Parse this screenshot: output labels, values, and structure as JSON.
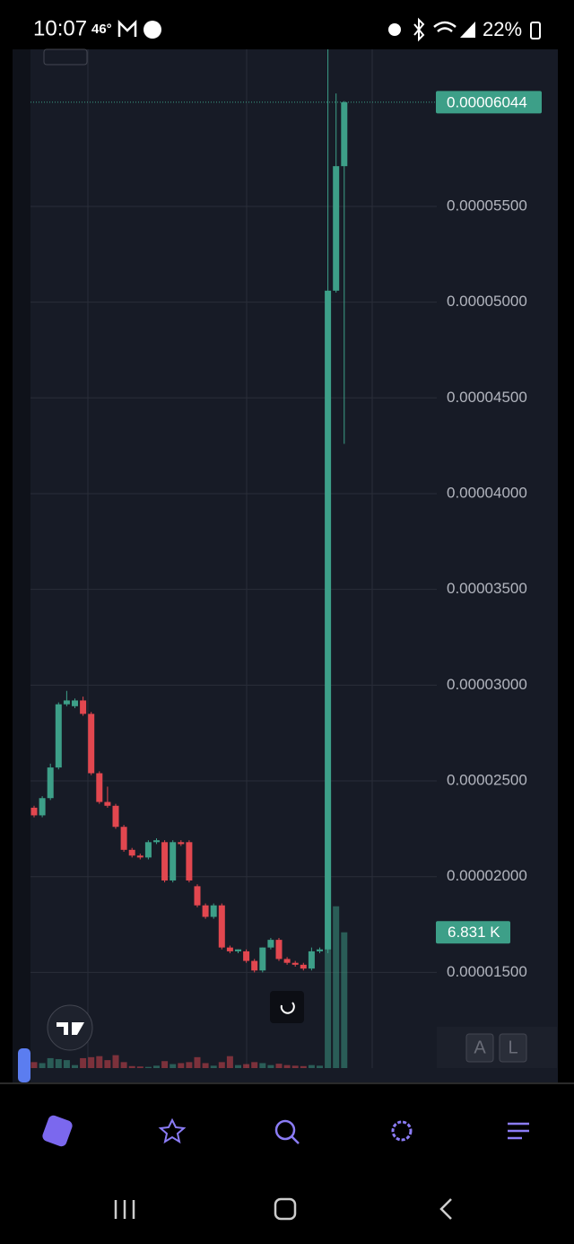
{
  "status_bar": {
    "time": "10:07",
    "temperature": "46°",
    "battery": "22%"
  },
  "chart_data": {
    "type": "candlestick",
    "ylim": [
      9.3e-06,
      6.32e-05
    ],
    "yticks": [
      {
        "value": 1.5e-05,
        "label": "0.00001500"
      },
      {
        "value": 2e-05,
        "label": "0.00002000"
      },
      {
        "value": 2.5e-05,
        "label": "0.00002500"
      },
      {
        "value": 3e-05,
        "label": "0.00003000"
      },
      {
        "value": 3.5e-05,
        "label": "0.00003500"
      },
      {
        "value": 4e-05,
        "label": "0.00004000"
      },
      {
        "value": 4.5e-05,
        "label": "0.00004500"
      },
      {
        "value": 5e-05,
        "label": "0.00005000"
      },
      {
        "value": 5.5e-05,
        "label": "0.00005500"
      }
    ],
    "grid": true,
    "up_color": "#3d9f88",
    "down_color": "#e2474f",
    "open": [
      2.36e-05,
      2.32e-05,
      2.41e-05,
      2.57e-05,
      2.9e-05,
      2.89e-05,
      2.92e-05,
      2.85e-05,
      2.54e-05,
      2.39e-05,
      2.37e-05,
      2.26e-05,
      2.14e-05,
      2.11e-05,
      2.1e-05,
      2.18e-05,
      2.18e-05,
      1.98e-05,
      2.18e-05,
      2.18e-05,
      1.95e-05,
      1.85e-05,
      1.79e-05,
      1.85e-05,
      1.63e-05,
      1.61e-05,
      1.61e-05,
      1.56e-05,
      1.51e-05,
      1.63e-05,
      1.67e-05,
      1.57e-05,
      1.55e-05,
      1.54e-05,
      1.52e-05,
      1.61e-05,
      1.62e-05,
      5.06e-05,
      5.71e-05
    ],
    "high": [
      2.37e-05,
      2.42e-05,
      2.59e-05,
      2.91e-05,
      2.97e-05,
      2.93e-05,
      2.94e-05,
      2.86e-05,
      2.55e-05,
      2.47e-05,
      2.38e-05,
      2.27e-05,
      2.15e-05,
      2.12e-05,
      2.19e-05,
      2.2e-05,
      2.19e-05,
      2.19e-05,
      2.19e-05,
      2.19e-05,
      1.96e-05,
      1.86e-05,
      1.86e-05,
      1.86e-05,
      1.64e-05,
      1.62e-05,
      1.62e-05,
      1.57e-05,
      1.63e-05,
      1.68e-05,
      1.68e-05,
      1.58e-05,
      1.56e-05,
      1.55e-05,
      1.63e-05,
      1.63e-05,
      6.32e-05,
      6.09e-05,
      6.05e-05
    ],
    "low": [
      2.31e-05,
      2.31e-05,
      2.4e-05,
      2.56e-05,
      2.89e-05,
      2.88e-05,
      2.84e-05,
      2.53e-05,
      2.38e-05,
      2.36e-05,
      2.25e-05,
      2.13e-05,
      2.1e-05,
      2.09e-05,
      2.09e-05,
      2.17e-05,
      1.97e-05,
      1.97e-05,
      2.16e-05,
      1.97e-05,
      1.84e-05,
      1.78e-05,
      1.78e-05,
      1.62e-05,
      1.6e-05,
      1.6e-05,
      1.55e-05,
      1.5e-05,
      1.5e-05,
      1.62e-05,
      1.56e-05,
      1.54e-05,
      1.53e-05,
      1.51e-05,
      1.51e-05,
      1.6e-05,
      1.6e-05,
      5.05e-05,
      4.26e-05
    ],
    "close": [
      2.32e-05,
      2.41e-05,
      2.57e-05,
      2.9e-05,
      2.92e-05,
      2.92e-05,
      2.85e-05,
      2.54e-05,
      2.39e-05,
      2.37e-05,
      2.26e-05,
      2.14e-05,
      2.11e-05,
      2.1e-05,
      2.18e-05,
      2.19e-05,
      1.98e-05,
      2.18e-05,
      2.17e-05,
      1.98e-05,
      1.85e-05,
      1.79e-05,
      1.85e-05,
      1.63e-05,
      1.61e-05,
      1.62e-05,
      1.56e-05,
      1.51e-05,
      1.63e-05,
      1.67e-05,
      1.57e-05,
      1.55e-05,
      1.54e-05,
      1.52e-05,
      1.61e-05,
      1.62e-05,
      5.06e-05,
      5.71e-05,
      6.044e-05
    ],
    "volume": [
      300,
      250,
      500,
      450,
      400,
      150,
      500,
      550,
      600,
      400,
      650,
      300,
      100,
      80,
      60,
      120,
      350,
      200,
      250,
      300,
      550,
      250,
      120,
      300,
      600,
      150,
      200,
      300,
      250,
      150,
      220,
      150,
      120,
      100,
      150,
      120,
      14000,
      8140,
      6831
    ],
    "last_price": {
      "value": 6.044e-05,
      "label": "0.00006044"
    },
    "last_volume": {
      "value": 6831,
      "label": "6.831 K"
    }
  },
  "buttons": {
    "auto": "A",
    "log": "L"
  }
}
